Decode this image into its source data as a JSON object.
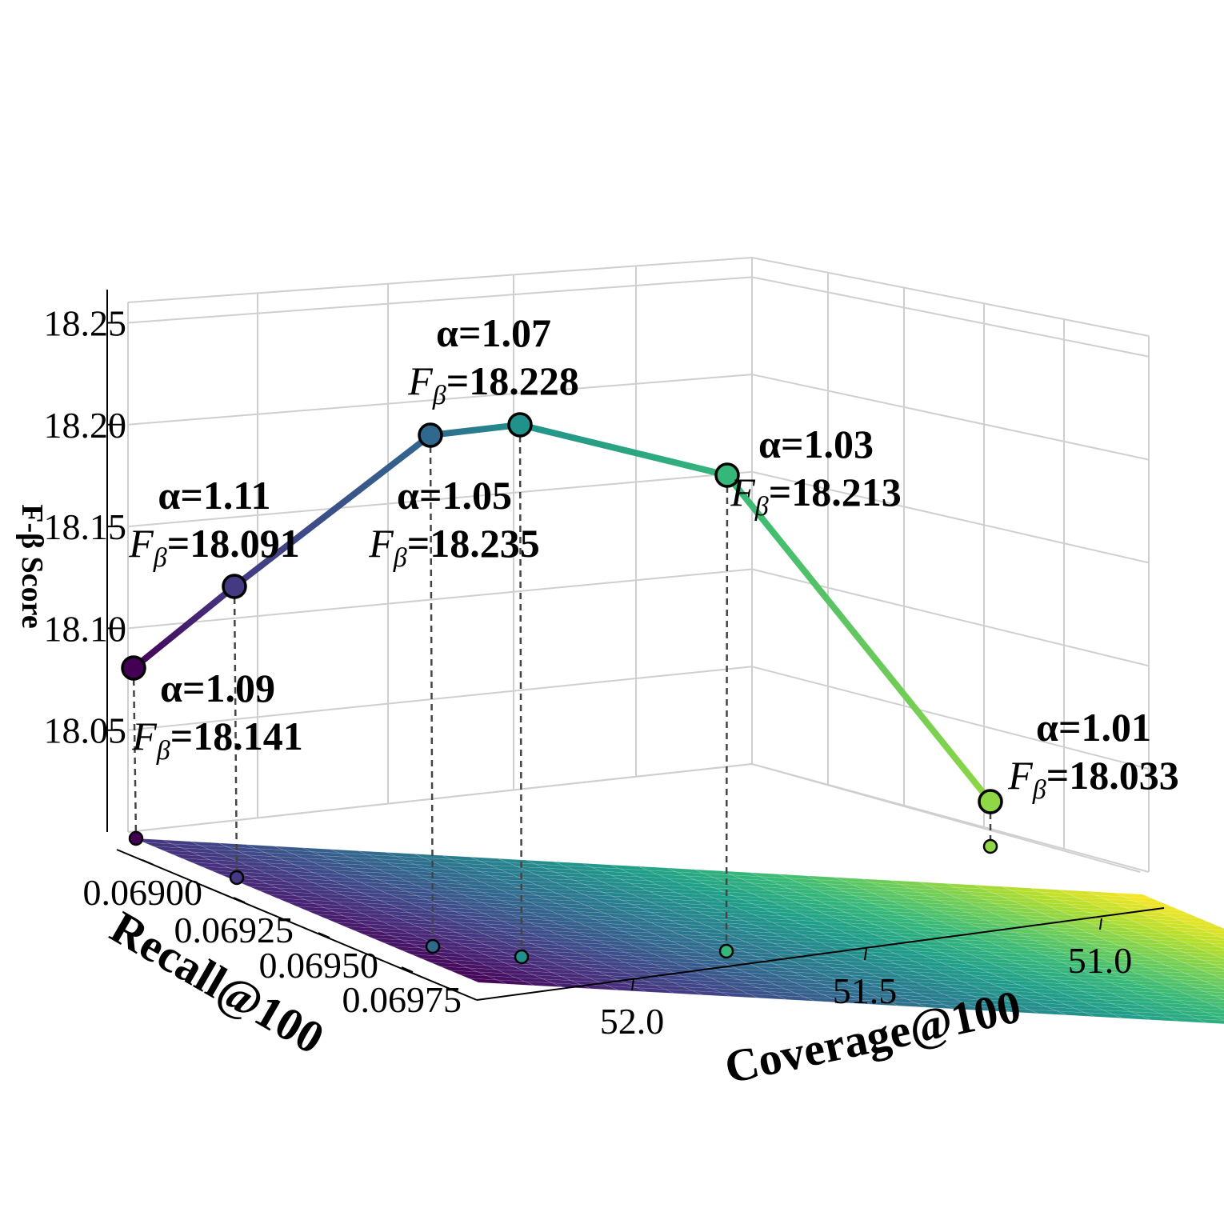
{
  "chart_data": {
    "type": "line",
    "title": "",
    "xlabel": "Coverage@100",
    "ylabel": "Recall@100",
    "zlabel": "F-β Score",
    "xticks": [
      "52.0",
      "51.5",
      "51.0"
    ],
    "yticks": [
      "0.06900",
      "0.06925",
      "0.06950",
      "0.06975"
    ],
    "zticks": [
      "18.05",
      "18.10",
      "18.15",
      "18.20",
      "18.25"
    ],
    "x_range": [
      52.3,
      50.85
    ],
    "y_range": [
      0.06885,
      0.06995
    ],
    "z_range": [
      18.0,
      18.26
    ],
    "colormap": "viridis",
    "grid": true,
    "surface": "plane below the curve, colored by Coverage and Recall",
    "series": [
      {
        "points": [
          {
            "alpha": 1.11,
            "label_alpha": "α=1.11",
            "label_f": "=18.091",
            "coverage": 52.28,
            "recall": 0.0689,
            "f_beta": 18.091,
            "color": "#440154"
          },
          {
            "alpha": 1.09,
            "label_alpha": "α=1.09",
            "label_f": "=18.141",
            "coverage": 52.1,
            "recall": 0.06918,
            "f_beta": 18.141,
            "color": "#443983"
          },
          {
            "alpha": 1.07,
            "label_alpha": "α=1.07",
            "label_f": "=18.228",
            "coverage": 51.88,
            "recall": 0.06962,
            "f_beta": 18.228,
            "color": "#31688e"
          },
          {
            "alpha": 1.05,
            "label_alpha": "α=1.05",
            "label_f": "=18.235",
            "coverage": 51.7,
            "recall": 0.06972,
            "f_beta": 18.235,
            "color": "#21918c"
          },
          {
            "alpha": 1.03,
            "label_alpha": "α=1.03",
            "label_f": "=18.213",
            "coverage": 51.38,
            "recall": 0.06957,
            "f_beta": 18.213,
            "color": "#35b779"
          },
          {
            "alpha": 1.01,
            "label_alpha": "α=1.01",
            "label_f": "=18.033",
            "coverage": 50.96,
            "recall": 0.0691,
            "f_beta": 18.033,
            "color": "#8fd744"
          }
        ]
      }
    ]
  }
}
